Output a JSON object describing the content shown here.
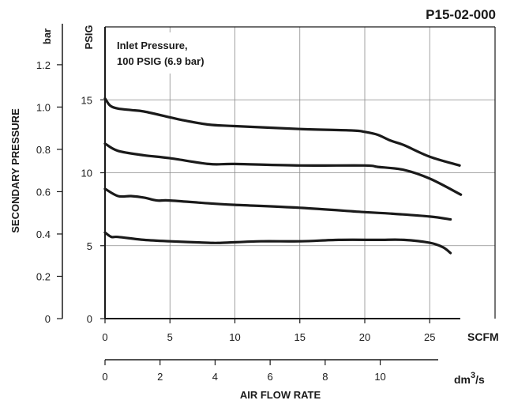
{
  "chart_data": {
    "type": "line",
    "title": "P15-02-000",
    "annotation": [
      "Inlet Pressure,",
      "100 PSIG (6.9 bar)"
    ],
    "ylabel": "SECONDARY PRESSURE",
    "xlabel": "AIR FLOW RATE",
    "y_primary": {
      "unit": "PSIG",
      "range": [
        0,
        20
      ],
      "ticks": [
        5,
        10,
        15
      ],
      "tick_labels": [
        "5",
        "10",
        "15"
      ],
      "zero_label": "0"
    },
    "y_secondary": {
      "unit": "bar",
      "range": [
        0,
        1.379
      ],
      "ticks": [
        0,
        0.2,
        0.4,
        0.6,
        0.8,
        1.0,
        1.2
      ],
      "tick_labels": [
        "0",
        "0.2",
        "0.4",
        "0.6",
        "0.8",
        "1.0",
        "1.2"
      ]
    },
    "x_primary": {
      "unit": "SCFM",
      "range": [
        0,
        30
      ],
      "ticks": [
        0,
        5,
        10,
        15,
        20,
        25
      ],
      "tick_labels": [
        "0",
        "5",
        "10",
        "15",
        "20",
        "25"
      ]
    },
    "x_secondary": {
      "unit": "dm",
      "unit_sup": "3",
      "unit_tail": "/s",
      "range": [
        0,
        14.158
      ],
      "ticks": [
        0,
        2,
        4,
        6,
        8,
        10
      ],
      "tick_labels": [
        "0",
        "2",
        "4",
        "6",
        "8",
        "10"
      ]
    },
    "grid": true,
    "series": [
      {
        "x": [
          0,
          0.4,
          1,
          2,
          3,
          5,
          6,
          8,
          10,
          15,
          19,
          20,
          21,
          22,
          23,
          25,
          27.3
        ],
        "y": [
          15.1,
          14.6,
          14.4,
          14.3,
          14.2,
          13.8,
          13.6,
          13.3,
          13.2,
          13.0,
          12.9,
          12.8,
          12.6,
          12.2,
          11.9,
          11.1,
          10.5
        ]
      },
      {
        "x": [
          0,
          1,
          3,
          5,
          8,
          10,
          15,
          20,
          21,
          23,
          25,
          27.4
        ],
        "y": [
          12.0,
          11.5,
          11.2,
          11.0,
          10.6,
          10.6,
          10.5,
          10.5,
          10.4,
          10.2,
          9.6,
          8.5
        ]
      },
      {
        "x": [
          0,
          1,
          2,
          3,
          4,
          5,
          8,
          10,
          15,
          20,
          22,
          25,
          26.6
        ],
        "y": [
          8.9,
          8.4,
          8.4,
          8.3,
          8.1,
          8.1,
          7.9,
          7.8,
          7.6,
          7.3,
          7.2,
          7.0,
          6.8
        ]
      },
      {
        "x": [
          0,
          0.5,
          1,
          3,
          5,
          8,
          9,
          12,
          15,
          18,
          21,
          23,
          25,
          26,
          26.6
        ],
        "y": [
          5.9,
          5.6,
          5.6,
          5.4,
          5.3,
          5.2,
          5.2,
          5.3,
          5.3,
          5.4,
          5.4,
          5.4,
          5.2,
          4.9,
          4.5
        ]
      }
    ]
  }
}
